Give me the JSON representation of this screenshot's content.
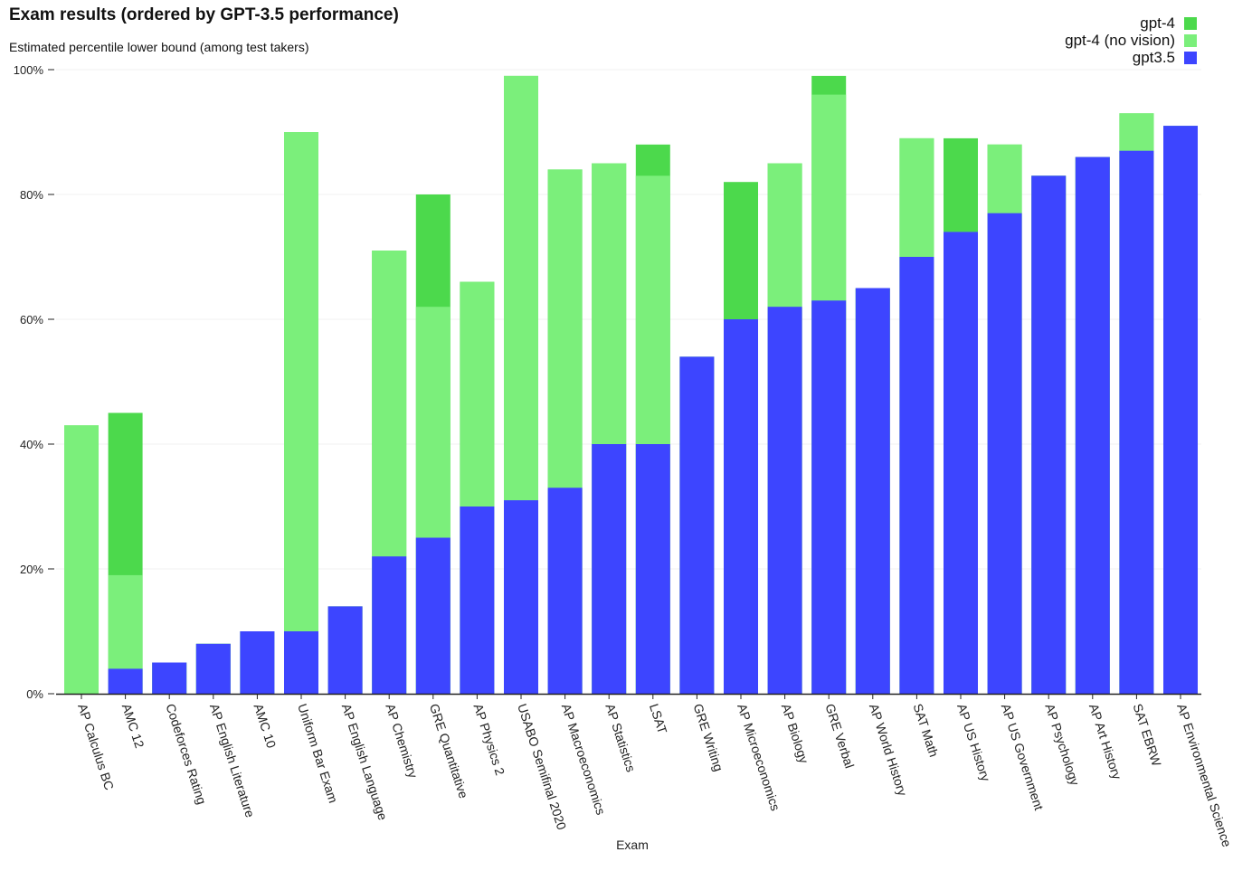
{
  "title": "Exam results (ordered by GPT-3.5 performance)",
  "subtitle": "Estimated percentile lower bound (among test takers)",
  "colors": {
    "gpt4": "#4cd94c",
    "gpt4_no_vision": "#7bef7b",
    "gpt35": "#3d45ff",
    "grid": "#f0f0f0",
    "axis": "#222222"
  },
  "legend": [
    {
      "label": "gpt-4",
      "color": "#4cd94c"
    },
    {
      "label": "gpt-4 (no vision)",
      "color": "#7bef7b"
    },
    {
      "label": "gpt3.5",
      "color": "#3d45ff"
    }
  ],
  "chart_data": {
    "type": "bar",
    "title": "Exam results (ordered by GPT-3.5 performance)",
    "subtitle": "Estimated percentile lower bound (among test takers)",
    "xlabel": "Exam",
    "ylabel": "",
    "ylim": [
      0,
      100
    ],
    "yticks": [
      0,
      20,
      40,
      60,
      80,
      100
    ],
    "ytick_labels": [
      "0%",
      "20%",
      "40%",
      "60%",
      "80%",
      "100%"
    ],
    "grid": true,
    "legend_position": "top-right",
    "categories": [
      "AP Calculus BC",
      "AMC 12",
      "Codeforces Rating",
      "AP English Literature",
      "AMC 10",
      "Uniform Bar Exam",
      "AP English Language",
      "AP Chemistry",
      "GRE Quantitative",
      "AP Physics 2",
      "USABO Semifinal 2020",
      "AP Macroeconomics",
      "AP Statistics",
      "LSAT",
      "GRE Writing",
      "AP Microeconomics",
      "AP Biology",
      "GRE Verbal",
      "AP World History",
      "SAT Math",
      "AP US History",
      "AP US Government",
      "AP Psychology",
      "AP Art History",
      "SAT EBRW",
      "AP Environmental Science"
    ],
    "series": [
      {
        "name": "gpt-4",
        "values": [
          43,
          45,
          5,
          8,
          10,
          90,
          14,
          71,
          80,
          66,
          99,
          84,
          85,
          88,
          54,
          82,
          85,
          99,
          65,
          89,
          89,
          88,
          83,
          86,
          93,
          91
        ]
      },
      {
        "name": "gpt-4 (no vision)",
        "values": [
          43,
          19,
          5,
          8,
          10,
          90,
          14,
          71,
          62,
          66,
          99,
          84,
          85,
          83,
          54,
          60,
          85,
          96,
          65,
          89,
          74,
          88,
          83,
          86,
          93,
          91
        ]
      },
      {
        "name": "gpt3.5",
        "values": [
          0,
          4,
          5,
          8,
          10,
          10,
          14,
          22,
          25,
          30,
          31,
          33,
          40,
          40,
          54,
          60,
          62,
          63,
          65,
          70,
          74,
          77,
          83,
          86,
          87,
          91
        ]
      }
    ]
  }
}
